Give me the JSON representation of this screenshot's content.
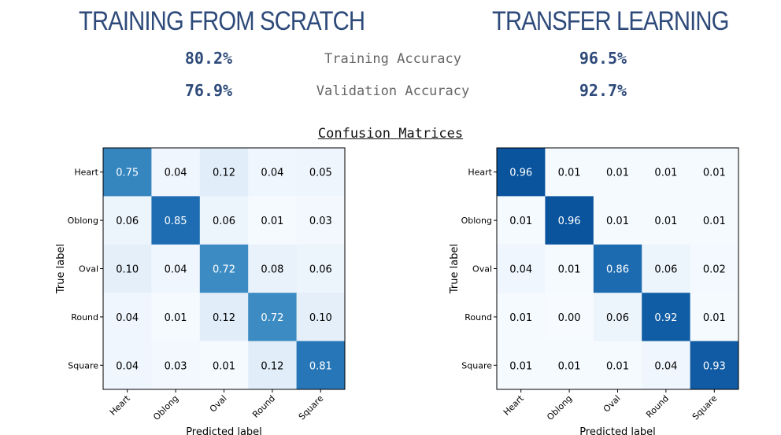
{
  "headings": {
    "left": "TRAINING FROM SCRATCH",
    "right": "TRANSFER LEARNING"
  },
  "metrics": [
    {
      "label": "Training Accuracy",
      "scratch": "80.2%",
      "transfer": "96.5%"
    },
    {
      "label": "Validation Accuracy",
      "scratch": "76.9%",
      "transfer": "92.7%"
    }
  ],
  "section_title": "Confusion Matrices",
  "chart_data": [
    {
      "type": "heatmap",
      "rows": [
        "Heart",
        "Oblong",
        "Oval",
        "Round",
        "Square"
      ],
      "cols": [
        "Heart",
        "Oblong",
        "Oval",
        "Round",
        "Square"
      ],
      "xlabel": "Predicted label",
      "ylabel": "True label",
      "colormap": "Blues",
      "range": [
        0,
        1
      ],
      "values": [
        [
          0.75,
          0.04,
          0.12,
          0.04,
          0.05
        ],
        [
          0.06,
          0.85,
          0.06,
          0.01,
          0.03
        ],
        [
          0.1,
          0.04,
          0.72,
          0.08,
          0.06
        ],
        [
          0.04,
          0.01,
          0.12,
          0.72,
          0.1
        ],
        [
          0.04,
          0.03,
          0.01,
          0.12,
          0.81
        ]
      ]
    },
    {
      "type": "heatmap",
      "rows": [
        "Heart",
        "Oblong",
        "Oval",
        "Round",
        "Square"
      ],
      "cols": [
        "Heart",
        "Oblong",
        "Oval",
        "Round",
        "Square"
      ],
      "xlabel": "Predicted label",
      "ylabel": "True label",
      "colormap": "Blues",
      "range": [
        0,
        1
      ],
      "values": [
        [
          0.96,
          0.01,
          0.01,
          0.01,
          0.01
        ],
        [
          0.01,
          0.96,
          0.01,
          0.01,
          0.01
        ],
        [
          0.04,
          0.01,
          0.86,
          0.06,
          0.02
        ],
        [
          0.01,
          0.0,
          0.06,
          0.92,
          0.01
        ],
        [
          0.01,
          0.01,
          0.01,
          0.04,
          0.93
        ]
      ]
    }
  ]
}
